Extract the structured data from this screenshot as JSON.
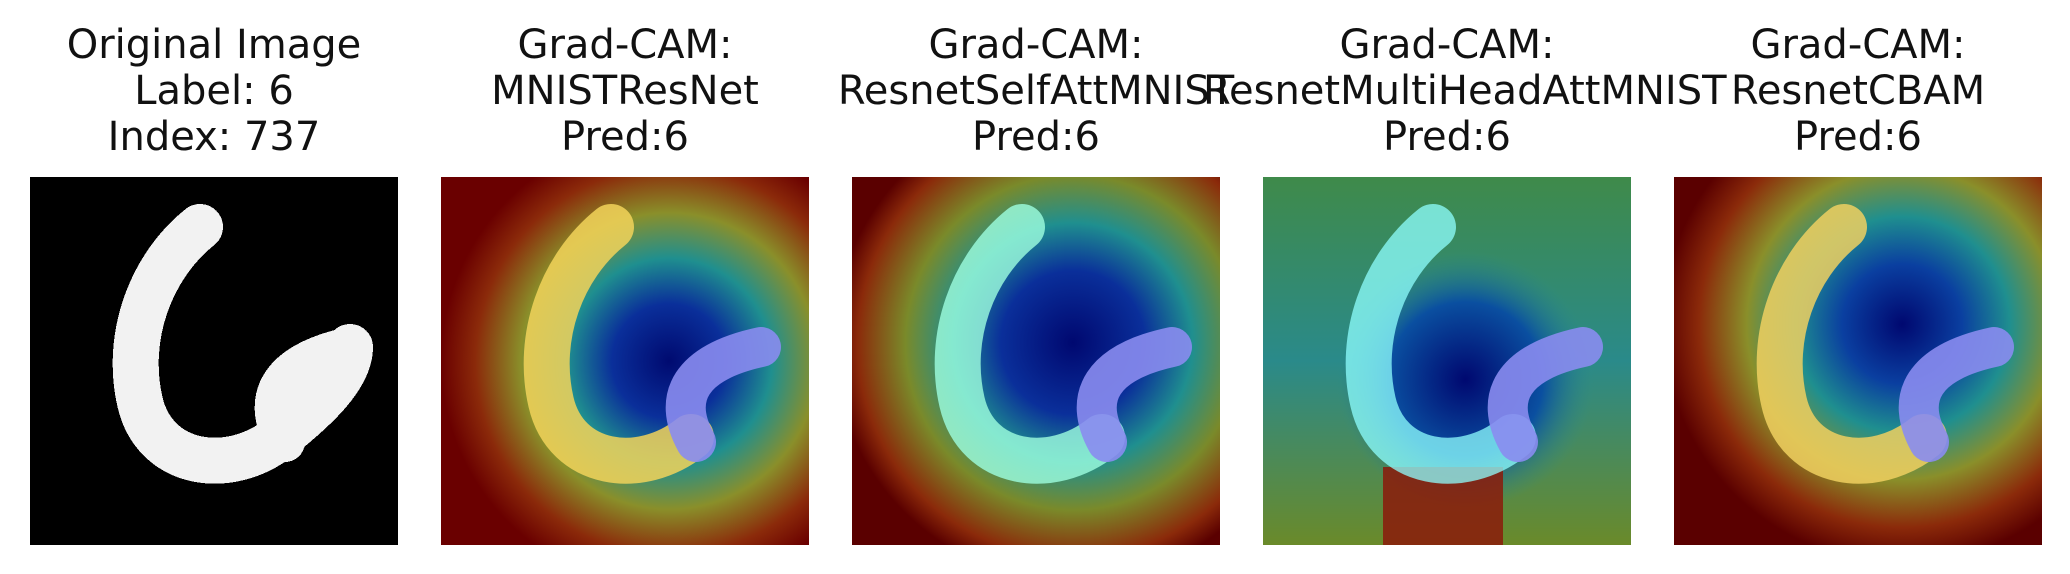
{
  "panels": [
    {
      "lines": [
        "Original Image",
        "Label: 6",
        "Index: 737"
      ],
      "kind": "original"
    },
    {
      "lines": [
        "Grad-CAM:",
        "MNISTResNet",
        "Pred:6"
      ],
      "kind": "cam1"
    },
    {
      "lines": [
        "Grad-CAM:",
        "ResnetSelfAttMNIST",
        "Pred:6"
      ],
      "kind": "cam2"
    },
    {
      "lines": [
        "Grad-CAM:",
        "ResnetMultiHeadAttMNIST",
        "Pred:6"
      ],
      "kind": "cam3"
    },
    {
      "lines": [
        "Grad-CAM:",
        "ResnetCBAM",
        "Pred:6"
      ],
      "kind": "cam4"
    }
  ],
  "colors": {
    "background": "#000000",
    "digit": "#f2f2f2",
    "heat_hot": "#8b0000",
    "heat_mid": "#c4a23a",
    "heat_cool": "#1f8f8f",
    "heat_cold": "#001070",
    "stroke_overlay": "#7fffff",
    "loop_overlay": "#8a8cf0"
  }
}
